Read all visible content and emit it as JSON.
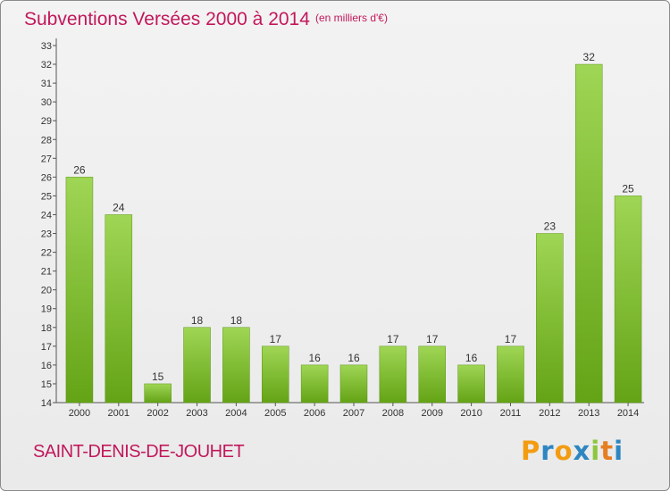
{
  "header": {
    "title": "Subventions Versées 2000 à 2014",
    "subtitle": "(en milliers d'€)"
  },
  "footer": {
    "commune": "SAINT-DENIS-DE-JOUHET",
    "logo_text": "Proxiti"
  },
  "colors": {
    "title": "#c2185b",
    "bar_light": "#9fd655",
    "bar_dark": "#64a316",
    "logo_letters": [
      "#f39c12",
      "#2e86c1",
      "#f39c12",
      "#2e86c1",
      "#8dc63f",
      "#e67e22",
      "#2e86c1"
    ]
  },
  "chart_data": {
    "type": "bar",
    "title": "Subventions Versées 2000 à 2014",
    "subtitle": "(en milliers d'€)",
    "categories": [
      "2000",
      "2001",
      "2002",
      "2003",
      "2004",
      "2005",
      "2006",
      "2007",
      "2008",
      "2009",
      "2010",
      "2011",
      "2012",
      "2013",
      "2014"
    ],
    "values": [
      26,
      24,
      15,
      18,
      18,
      17,
      16,
      16,
      17,
      17,
      16,
      17,
      23,
      32,
      25
    ],
    "ylim": [
      14,
      33
    ],
    "yticks": [
      14,
      15,
      16,
      17,
      18,
      19,
      20,
      21,
      22,
      23,
      24,
      25,
      26,
      27,
      28,
      29,
      30,
      31,
      32,
      33
    ],
    "grid": false,
    "data_labels": true
  }
}
